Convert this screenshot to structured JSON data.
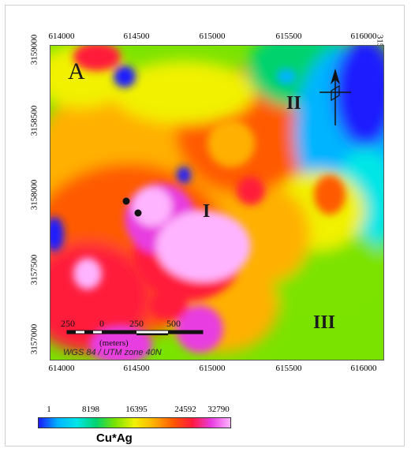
{
  "map": {
    "panel_letter": "A",
    "zone_labels": [
      "I",
      "II",
      "III"
    ],
    "easting_ticks": [
      "614000",
      "614500",
      "615000",
      "615500",
      "616000"
    ],
    "northing_ticks": [
      "3159000",
      "3158500",
      "3158000",
      "3157500",
      "3157000"
    ],
    "sample_points": 2,
    "north_arrow_icon": "north-arrow-icon"
  },
  "scale_bar": {
    "labels": [
      "250",
      "0",
      "250",
      "500"
    ],
    "units": "(meters)",
    "crs": "WGS 84 / UTM zone 40N"
  },
  "legend": {
    "title": "Cu*Ag",
    "ticks": [
      "1",
      "8198",
      "16395",
      "24592",
      "32790"
    ],
    "min": 1,
    "max": 32790,
    "colors": [
      "#1a1aff",
      "#00b4ff",
      "#00e6e6",
      "#00d26e",
      "#7be300",
      "#f1f100",
      "#ffb000",
      "#ff5a00",
      "#ff1a3a",
      "#e83ce0",
      "#ffb4ff"
    ]
  }
}
